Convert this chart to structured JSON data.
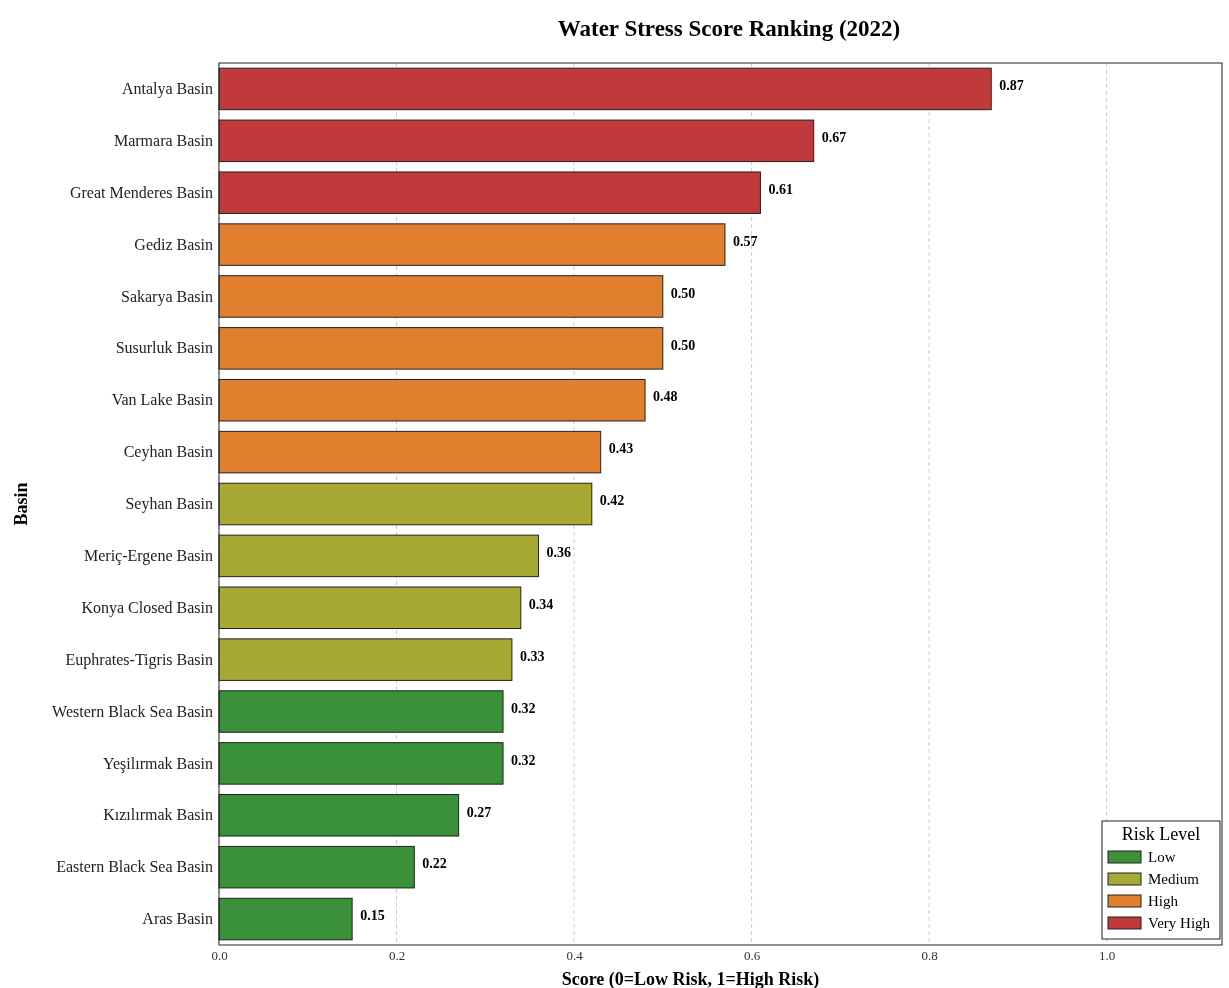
{
  "chart_data": {
    "type": "bar",
    "orientation": "horizontal",
    "title": "Water Stress Score Ranking (2022)",
    "xlabel": "Score (0=Low Risk, 1=High Risk)",
    "ylabel": "Basin",
    "legend_title": "Risk Level",
    "categories": [
      "Antalya Basin",
      "Marmara Basin",
      "Great Menderes Basin",
      "Gediz Basin",
      "Sakarya Basin",
      "Susurluk Basin",
      "Van Lake Basin",
      "Ceyhan Basin",
      "Seyhan Basin",
      "Meriç-Ergene Basin",
      "Konya Closed Basin",
      "Euphrates-Tigris Basin",
      "Western Black Sea Basin",
      "Yeşilırmak Basin",
      "Kızılırmak Basin",
      "Eastern Black Sea Basin",
      "Aras Basin"
    ],
    "series": [
      {
        "name": "Low",
        "color": "#3a9139",
        "values": [
          null,
          null,
          null,
          null,
          null,
          null,
          null,
          null,
          null,
          null,
          null,
          null,
          0.32,
          0.32,
          0.27,
          0.22,
          0.15
        ],
        "value_labels": [
          null,
          null,
          null,
          null,
          null,
          null,
          null,
          null,
          null,
          null,
          null,
          null,
          "0.32",
          "0.32",
          "0.27",
          "0.22",
          "0.15"
        ]
      },
      {
        "name": "Medium",
        "color": "#a8a935",
        "values": [
          null,
          null,
          null,
          null,
          null,
          null,
          null,
          null,
          0.42,
          0.36,
          0.34,
          0.33,
          null,
          null,
          null,
          null,
          null
        ],
        "value_labels": [
          null,
          null,
          null,
          null,
          null,
          null,
          null,
          null,
          "0.42",
          "0.36",
          "0.34",
          "0.33",
          null,
          null,
          null,
          null,
          null
        ]
      },
      {
        "name": "High",
        "color": "#e0802e",
        "values": [
          null,
          null,
          null,
          0.57,
          0.5,
          0.5,
          0.48,
          0.43,
          null,
          null,
          null,
          null,
          null,
          null,
          null,
          null,
          null
        ],
        "value_labels": [
          null,
          null,
          null,
          "0.57",
          "0.50",
          "0.50",
          "0.48",
          "0.43",
          null,
          null,
          null,
          null,
          null,
          null,
          null,
          null,
          null
        ]
      },
      {
        "name": "Very High",
        "color": "#c0393b",
        "values": [
          0.87,
          0.67,
          0.61,
          null,
          null,
          null,
          null,
          null,
          null,
          null,
          null,
          null,
          null,
          null,
          null,
          null,
          null
        ],
        "value_labels": [
          "0.87",
          "0.67",
          "0.61",
          null,
          null,
          null,
          null,
          null,
          null,
          null,
          null,
          null,
          null,
          null,
          null,
          null,
          null
        ]
      }
    ],
    "xlim": [
      0,
      1.13
    ],
    "xticks": [
      {
        "value": 0,
        "label": "0.0"
      },
      {
        "value": 0.2,
        "label": "0.2"
      },
      {
        "value": 0.4,
        "label": "0.4"
      },
      {
        "value": 0.6,
        "label": "0.6"
      },
      {
        "value": 0.8,
        "label": "0.8"
      },
      {
        "value": 1,
        "label": "1.0"
      }
    ],
    "grid": "x",
    "legend": "bottom right"
  }
}
